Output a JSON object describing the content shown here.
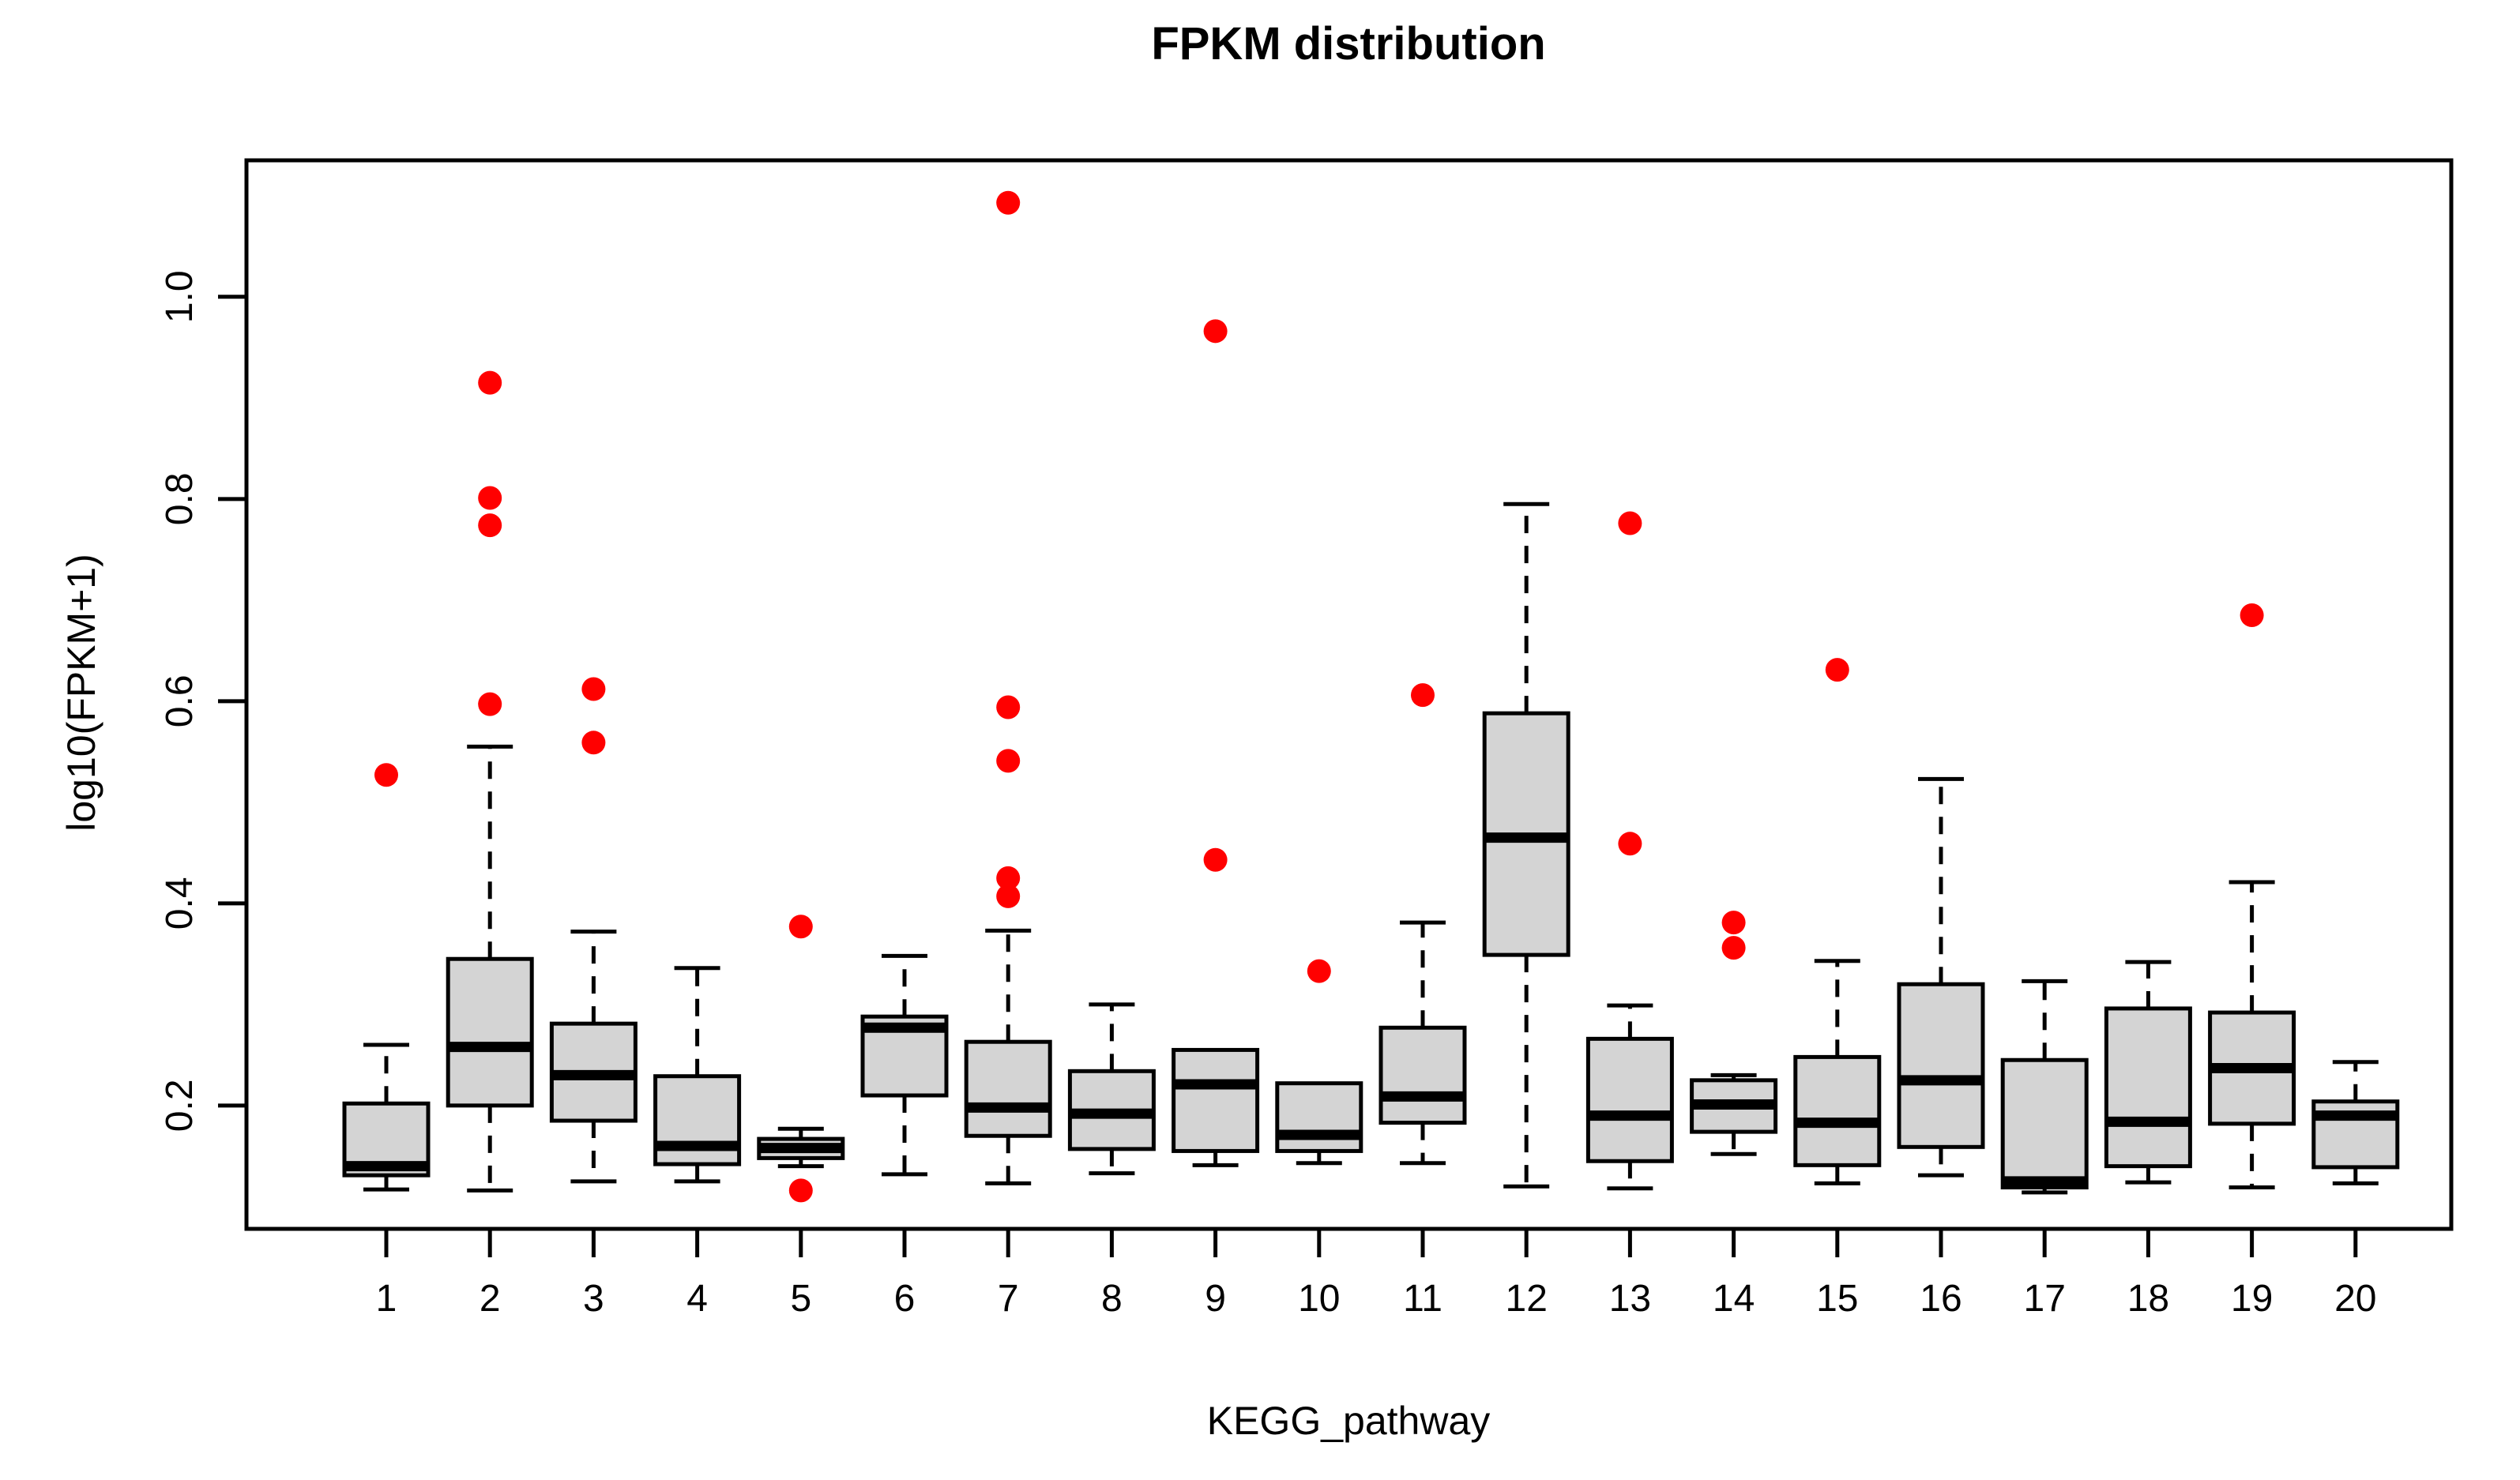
{
  "chart_data": {
    "type": "boxplot",
    "title": "FPKM distribution",
    "xlabel": "KEGG_pathway",
    "ylabel": "log10(FPKM+1)",
    "categories": [
      "1",
      "2",
      "3",
      "4",
      "5",
      "6",
      "7",
      "8",
      "9",
      "10",
      "11",
      "12",
      "13",
      "14",
      "15",
      "16",
      "17",
      "18",
      "19",
      "20"
    ],
    "y_ticks": [
      0.2,
      0.4,
      0.6,
      0.8,
      1.0
    ],
    "y_tick_labels": [
      "0.2",
      "0.4",
      "0.6",
      "0.8",
      "1.0"
    ],
    "ylim": [
      0.078,
      1.135
    ],
    "grid": false,
    "legend": "none",
    "colors": {
      "box_fill": "#d4d4d4",
      "box_stroke": "#000000",
      "median": "#000000",
      "whisker": "#000000",
      "outlier": "#ff0000",
      "background": "#ffffff"
    },
    "series": [
      {
        "category": "1",
        "low": 0.117,
        "q1": 0.131,
        "median": 0.14,
        "q3": 0.202,
        "high": 0.26,
        "outliers": [
          0.527
        ]
      },
      {
        "category": "2",
        "low": 0.116,
        "q1": 0.2,
        "median": 0.258,
        "q3": 0.345,
        "high": 0.555,
        "outliers": [
          0.915,
          0.801,
          0.774,
          0.597
        ]
      },
      {
        "category": "3",
        "low": 0.125,
        "q1": 0.185,
        "median": 0.23,
        "q3": 0.281,
        "high": 0.372,
        "outliers": [
          0.612,
          0.559
        ]
      },
      {
        "category": "4",
        "low": 0.125,
        "q1": 0.142,
        "median": 0.16,
        "q3": 0.229,
        "high": 0.336,
        "outliers": []
      },
      {
        "category": "5",
        "low": 0.14,
        "q1": 0.148,
        "median": 0.158,
        "q3": 0.167,
        "high": 0.177,
        "outliers": [
          0.377,
          0.116
        ]
      },
      {
        "category": "6",
        "low": 0.132,
        "q1": 0.21,
        "median": 0.277,
        "q3": 0.288,
        "high": 0.348,
        "outliers": []
      },
      {
        "category": "7",
        "low": 0.123,
        "q1": 0.17,
        "median": 0.198,
        "q3": 0.263,
        "high": 0.373,
        "outliers": [
          1.093,
          0.594,
          0.541,
          0.425,
          0.407
        ]
      },
      {
        "category": "8",
        "low": 0.133,
        "q1": 0.157,
        "median": 0.192,
        "q3": 0.234,
        "high": 0.3,
        "outliers": []
      },
      {
        "category": "9",
        "low": 0.141,
        "q1": 0.155,
        "median": 0.221,
        "q3": 0.255,
        "high": 0.255,
        "outliers": [
          0.966,
          0.443
        ]
      },
      {
        "category": "10",
        "low": 0.143,
        "q1": 0.155,
        "median": 0.171,
        "q3": 0.222,
        "high": 0.222,
        "outliers": [
          0.333
        ]
      },
      {
        "category": "11",
        "low": 0.143,
        "q1": 0.183,
        "median": 0.209,
        "q3": 0.277,
        "high": 0.381,
        "outliers": [
          0.606
        ]
      },
      {
        "category": "12",
        "low": 0.12,
        "q1": 0.349,
        "median": 0.465,
        "q3": 0.588,
        "high": 0.795,
        "outliers": []
      },
      {
        "category": "13",
        "low": 0.118,
        "q1": 0.145,
        "median": 0.19,
        "q3": 0.266,
        "high": 0.299,
        "outliers": [
          0.776,
          0.459
        ]
      },
      {
        "category": "14",
        "low": 0.152,
        "q1": 0.174,
        "median": 0.201,
        "q3": 0.225,
        "high": 0.23,
        "outliers": [
          0.381,
          0.356
        ]
      },
      {
        "category": "15",
        "low": 0.123,
        "q1": 0.141,
        "median": 0.183,
        "q3": 0.248,
        "high": 0.343,
        "outliers": [
          0.631
        ]
      },
      {
        "category": "16",
        "low": 0.131,
        "q1": 0.159,
        "median": 0.225,
        "q3": 0.32,
        "high": 0.523,
        "outliers": []
      },
      {
        "category": "17",
        "low": 0.114,
        "q1": 0.119,
        "median": 0.125,
        "q3": 0.245,
        "high": 0.323,
        "outliers": []
      },
      {
        "category": "18",
        "low": 0.124,
        "q1": 0.14,
        "median": 0.184,
        "q3": 0.296,
        "high": 0.342,
        "outliers": []
      },
      {
        "category": "19",
        "low": 0.119,
        "q1": 0.182,
        "median": 0.237,
        "q3": 0.292,
        "high": 0.421,
        "outliers": [
          0.685
        ]
      },
      {
        "category": "20",
        "low": 0.123,
        "q1": 0.139,
        "median": 0.19,
        "q3": 0.204,
        "high": 0.243,
        "outliers": []
      }
    ]
  }
}
